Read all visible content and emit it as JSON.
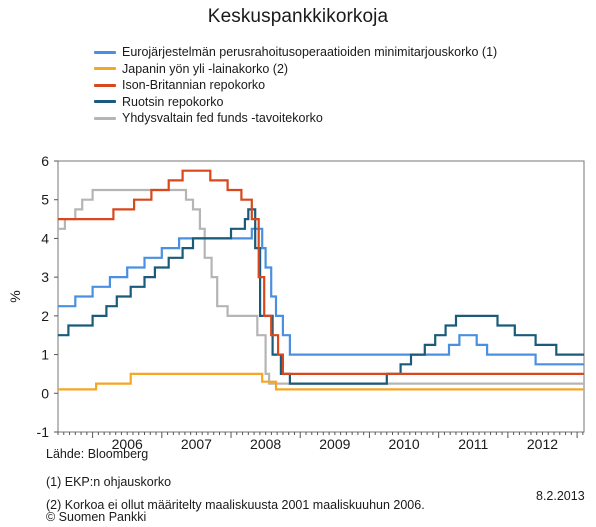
{
  "title": "Keskuspankkikorkoja",
  "legend": [
    {
      "label": "Eurojärjestelmän perusrahoitusoperaatioiden minimitarjouskorko (1)",
      "color": "#4a90e2"
    },
    {
      "label": "Japanin yön yli -lainakorko (2)",
      "color": "#f5a623"
    },
    {
      "label": "Ison-Britannian repokorko",
      "color": "#d9471c"
    },
    {
      "label": "Ruotsin repokorko",
      "color": "#1a5a7a"
    },
    {
      "label": "Yhdysvaltain fed funds -tavoitekorko",
      "color": "#b5b5b5"
    }
  ],
  "chart_data": {
    "type": "line",
    "title": "Keskuspankkikorkoja",
    "ylabel": "%",
    "ylim": [
      -1,
      6
    ],
    "yticks": [
      "-1",
      "0",
      "1",
      "2",
      "3",
      "4",
      "5",
      "6"
    ],
    "xticks": [
      "2006",
      "2007",
      "2008",
      "2009",
      "2010",
      "2011",
      "2012"
    ],
    "xlim": [
      2005.5,
      2013.1
    ],
    "grid": false,
    "series": [
      {
        "name": "Yhdysvaltain fed funds -tavoitekorko",
        "color": "#b5b5b5",
        "points": [
          [
            2005.5,
            4.25
          ],
          [
            2005.6,
            4.5
          ],
          [
            2005.75,
            4.75
          ],
          [
            2005.85,
            5.0
          ],
          [
            2006.0,
            5.25
          ],
          [
            2007.25,
            5.25
          ],
          [
            2007.35,
            5.0
          ],
          [
            2007.45,
            4.75
          ],
          [
            2007.55,
            4.25
          ],
          [
            2007.62,
            3.5
          ],
          [
            2007.72,
            3.0
          ],
          [
            2007.8,
            2.25
          ],
          [
            2007.95,
            2.0
          ],
          [
            2008.3,
            2.0
          ],
          [
            2008.38,
            1.5
          ],
          [
            2008.5,
            0.5
          ],
          [
            2008.55,
            0.25
          ],
          [
            2013.1,
            0.25
          ]
        ]
      },
      {
        "name": "Eurojärjestelmän perusrahoitusoperaatioiden minimitarjouskorko (1)",
        "color": "#4a90e2",
        "points": [
          [
            2005.5,
            2.25
          ],
          [
            2005.75,
            2.5
          ],
          [
            2006.0,
            2.75
          ],
          [
            2006.25,
            3.0
          ],
          [
            2006.5,
            3.25
          ],
          [
            2006.75,
            3.5
          ],
          [
            2007.0,
            3.75
          ],
          [
            2007.25,
            4.0
          ],
          [
            2008.3,
            4.25
          ],
          [
            2008.45,
            3.75
          ],
          [
            2008.5,
            3.25
          ],
          [
            2008.58,
            2.5
          ],
          [
            2008.65,
            2.0
          ],
          [
            2008.75,
            1.5
          ],
          [
            2008.85,
            1.0
          ],
          [
            2011.0,
            1.0
          ],
          [
            2011.15,
            1.25
          ],
          [
            2011.3,
            1.5
          ],
          [
            2011.55,
            1.25
          ],
          [
            2011.7,
            1.0
          ],
          [
            2012.2,
            1.0
          ],
          [
            2012.4,
            0.75
          ],
          [
            2013.1,
            0.75
          ]
        ]
      },
      {
        "name": "Ruotsin repokorko",
        "color": "#1a5a7a",
        "points": [
          [
            2005.5,
            1.5
          ],
          [
            2005.65,
            1.75
          ],
          [
            2006.0,
            2.0
          ],
          [
            2006.2,
            2.25
          ],
          [
            2006.35,
            2.5
          ],
          [
            2006.55,
            2.75
          ],
          [
            2006.75,
            3.0
          ],
          [
            2006.9,
            3.25
          ],
          [
            2007.1,
            3.5
          ],
          [
            2007.3,
            3.75
          ],
          [
            2007.45,
            4.0
          ],
          [
            2008.0,
            4.25
          ],
          [
            2008.2,
            4.5
          ],
          [
            2008.25,
            4.75
          ],
          [
            2008.35,
            3.75
          ],
          [
            2008.42,
            2.0
          ],
          [
            2008.5,
            2.0
          ],
          [
            2008.6,
            1.0
          ],
          [
            2008.72,
            0.5
          ],
          [
            2008.85,
            0.25
          ],
          [
            2010.0,
            0.25
          ],
          [
            2010.25,
            0.5
          ],
          [
            2010.45,
            0.75
          ],
          [
            2010.6,
            1.0
          ],
          [
            2010.8,
            1.25
          ],
          [
            2010.95,
            1.5
          ],
          [
            2011.1,
            1.75
          ],
          [
            2011.25,
            2.0
          ],
          [
            2011.7,
            2.0
          ],
          [
            2011.85,
            1.75
          ],
          [
            2012.1,
            1.5
          ],
          [
            2012.4,
            1.25
          ],
          [
            2012.7,
            1.0
          ],
          [
            2013.1,
            1.0
          ]
        ]
      },
      {
        "name": "Ison-Britannian repokorko",
        "color": "#d9471c",
        "points": [
          [
            2005.5,
            4.5
          ],
          [
            2006.3,
            4.75
          ],
          [
            2006.6,
            5.0
          ],
          [
            2006.85,
            5.25
          ],
          [
            2007.1,
            5.5
          ],
          [
            2007.3,
            5.75
          ],
          [
            2007.7,
            5.5
          ],
          [
            2007.95,
            5.25
          ],
          [
            2008.15,
            5.0
          ],
          [
            2008.3,
            4.5
          ],
          [
            2008.4,
            3.0
          ],
          [
            2008.48,
            2.0
          ],
          [
            2008.58,
            1.5
          ],
          [
            2008.68,
            1.0
          ],
          [
            2008.75,
            0.5
          ],
          [
            2013.1,
            0.5
          ]
        ]
      },
      {
        "name": "Japanin yön yli -lainakorko (2)",
        "color": "#f5a623",
        "points": [
          [
            2005.5,
            0.1
          ],
          [
            2006.0,
            0.1
          ],
          [
            2006.05,
            0.25
          ],
          [
            2006.5,
            0.25
          ],
          [
            2006.55,
            0.5
          ],
          [
            2008.35,
            0.5
          ],
          [
            2008.45,
            0.3
          ],
          [
            2008.65,
            0.1
          ],
          [
            2013.1,
            0.1
          ]
        ]
      }
    ]
  },
  "notes": {
    "source": "Lähde: Bloomberg",
    "note1": "(1) EKP:n ohjauskorko",
    "note2": "(2) Korkoa ei ollut määritelty maaliskuusta 2001 maaliskuuhun 2006.",
    "credit": "© Suomen Pankki",
    "date": "8.2.2013"
  }
}
